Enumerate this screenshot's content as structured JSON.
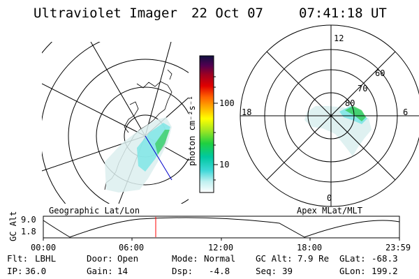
{
  "header": {
    "title": "Ultraviolet Imager",
    "date": "22 Oct 07",
    "time": "07:41:18 UT"
  },
  "left_panel": {
    "label": "Geographic Lat/Lon"
  },
  "right_panel": {
    "label": "Apex MLat/MLT",
    "mlt_labels": [
      "12",
      "18",
      "6",
      "0"
    ],
    "lat_labels": [
      "80",
      "70",
      "60"
    ]
  },
  "colorbar": {
    "unit": "photon cm⁻²s⁻¹",
    "ticks": [
      "100",
      "10"
    ]
  },
  "orbit_plot": {
    "ylabel": "GC Alt",
    "yticks": [
      "9.0",
      "1.8"
    ],
    "xticks": [
      "00:00",
      "06:00",
      "12:00",
      "18:00",
      "23:59"
    ],
    "current_time_marker": "07:41:18"
  },
  "status": {
    "row1": [
      {
        "key": "Flt:",
        "value": "LBHL"
      },
      {
        "key": "Door:",
        "value": "Open"
      },
      {
        "key": "Mode:",
        "value": "Normal"
      },
      {
        "key": "GC Alt:",
        "value": "7.9 Re"
      },
      {
        "key": "GLat:",
        "value": "-68.3"
      }
    ],
    "row2": [
      {
        "key": "IP:",
        "value": "36.0"
      },
      {
        "key": "Gain:",
        "value": "14"
      },
      {
        "key": "Dsp:",
        "value": "  -4.8"
      },
      {
        "key": "Seq:",
        "value": "39"
      },
      {
        "key": "GLon:",
        "value": "199.2"
      }
    ]
  },
  "colors": {
    "aurora_cyan": "#7fe6e6",
    "aurora_green": "#33cc33",
    "marker_red": "#ff0000"
  }
}
